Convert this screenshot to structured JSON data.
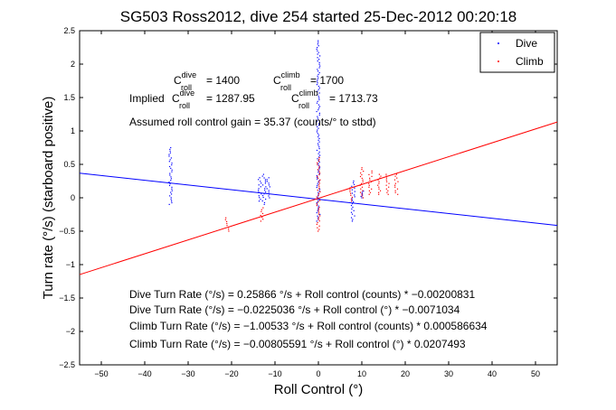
{
  "chart_data": {
    "type": "scatter",
    "title": "SG503 Ross2012, dive 254 started 25-Dec-2012 00:20:18",
    "xlabel": "Roll Control (°)",
    "ylabel": "Turn rate (°/s) (starboard positive)",
    "xlim": [
      -55,
      55
    ],
    "ylim": [
      -2.5,
      2.5
    ],
    "x_ticks": [
      "−50",
      "−40",
      "−30",
      "−20",
      "−10",
      "0",
      "10",
      "20",
      "30",
      "40",
      "50"
    ],
    "x_tick_values": [
      -50,
      -40,
      -30,
      -20,
      -10,
      0,
      10,
      20,
      30,
      40,
      50
    ],
    "y_ticks": [
      "−2.5",
      "−2",
      "−1.5",
      "−1",
      "−0.5",
      "0",
      "0.5",
      "1",
      "1.5",
      "2",
      "2.5"
    ],
    "y_tick_values": [
      -2.5,
      -2,
      -1.5,
      -1,
      -0.5,
      0,
      0.5,
      1,
      1.5,
      2,
      2.5
    ],
    "grid": false,
    "legend": {
      "location": "top-right",
      "entries": [
        {
          "name": "Dive",
          "color": "#0000ff"
        },
        {
          "name": "Climb",
          "color": "#ff0000"
        }
      ]
    },
    "series": [
      {
        "name": "Dive",
        "color": "#0000ff",
        "clusters": [
          {
            "x": -34,
            "y_min": -0.1,
            "y_max": 0.75
          },
          {
            "x": -13.5,
            "y_min": -0.05,
            "y_max": 0.3
          },
          {
            "x": -12.5,
            "y_min": -0.1,
            "y_max": 0.35
          },
          {
            "x": -11.5,
            "y_min": 0.0,
            "y_max": 0.3
          },
          {
            "x": 0,
            "y_min": -0.35,
            "y_max": 2.35
          },
          {
            "x": 8,
            "y_min": -0.35,
            "y_max": 0.25
          },
          {
            "x": 10,
            "y_min": 0.0,
            "y_max": 0.1
          }
        ],
        "fit": {
          "slope": -0.0071034,
          "intercept": -0.0225036
        }
      },
      {
        "name": "Climb",
        "color": "#ff0000",
        "clusters": [
          {
            "x": -21,
            "y_min": -0.5,
            "y_max": -0.3
          },
          {
            "x": -13,
            "y_min": -0.35,
            "y_max": -0.15
          },
          {
            "x": 0,
            "y_min": -0.5,
            "y_max": 0.6
          },
          {
            "x": 7.5,
            "y_min": -0.05,
            "y_max": 0.15
          },
          {
            "x": 10,
            "y_min": 0.0,
            "y_max": 0.45
          },
          {
            "x": 12,
            "y_min": 0.05,
            "y_max": 0.4
          },
          {
            "x": 14,
            "y_min": 0.05,
            "y_max": 0.35
          },
          {
            "x": 16,
            "y_min": 0.05,
            "y_max": 0.35
          },
          {
            "x": 18,
            "y_min": 0.05,
            "y_max": 0.35
          }
        ],
        "fit": {
          "slope": 0.0207493,
          "intercept": -0.00805591
        }
      }
    ]
  },
  "annotations": {
    "c_dive": {
      "symbol": "C",
      "sub": "roll",
      "sup": "dive",
      "value": "= 1400"
    },
    "c_climb": {
      "symbol": "C",
      "sub": "roll",
      "sup": "climb",
      "value": "= 1700"
    },
    "implied_prefix": "Implied",
    "implied_dive": {
      "symbol": "C",
      "sub": "roll",
      "sup": "dive",
      "value": "= 1287.95"
    },
    "implied_climb": {
      "symbol": "C",
      "sub": "roll",
      "sup": "climb",
      "value": "= 1713.73"
    },
    "gain": "Assumed roll control gain = 35.37 (counts/° to stbd)",
    "eq_lines": [
      "Dive Turn Rate (°/s) = 0.25866 °/s + Roll control (counts) * −0.00200831",
      "Dive Turn Rate (°/s) = −0.0225036 °/s + Roll control (°) * −0.0071034",
      "Climb Turn Rate (°/s) = −1.00533 °/s + Roll control (counts) * 0.000586634",
      "Climb Turn Rate (°/s) = −0.00805591 °/s + Roll control (°) * 0.0207493"
    ]
  }
}
